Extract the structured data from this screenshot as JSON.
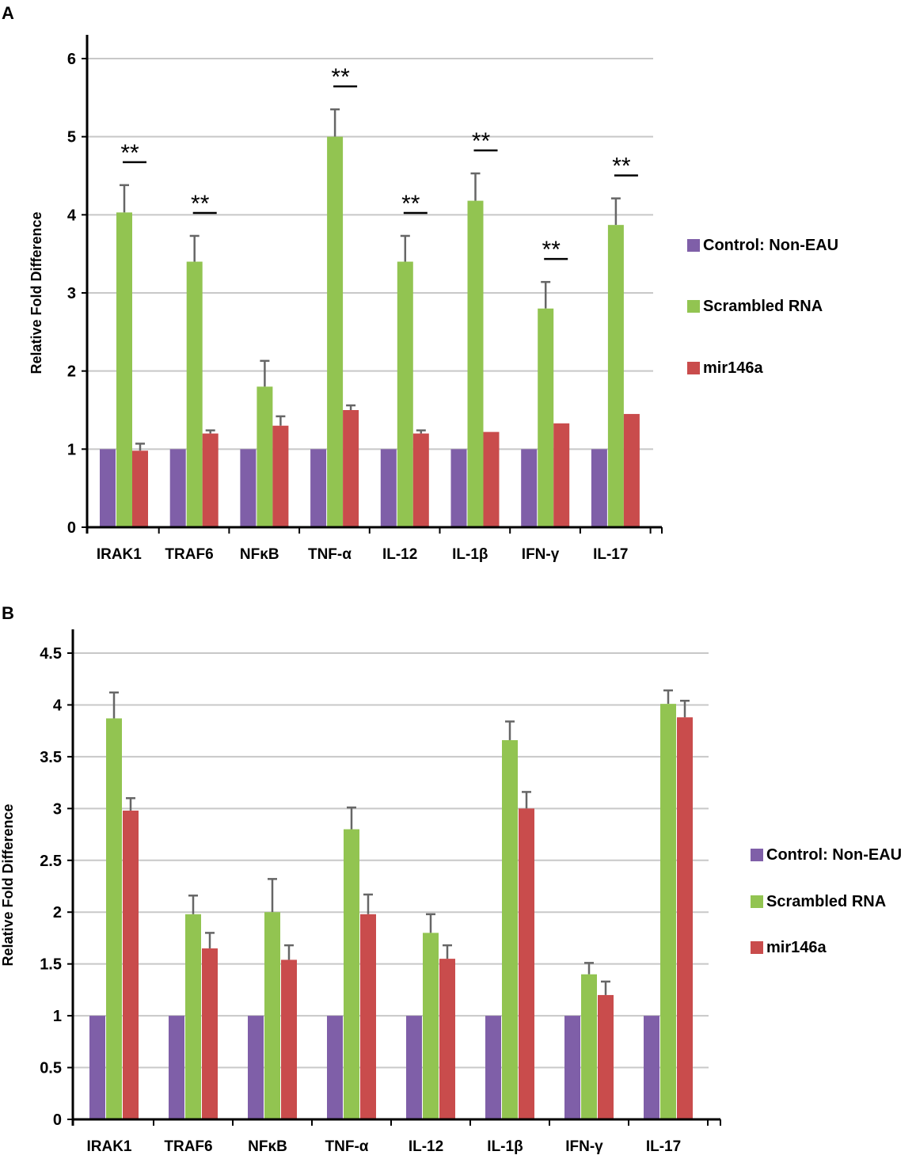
{
  "panel_labels": {
    "a": "A",
    "b": "B"
  },
  "colors": {
    "control": "#7f5fa8",
    "scrambled": "#92c451",
    "mir": "#c94c4c",
    "grid": "#c8c8c8",
    "error": "#666666"
  },
  "chart_data": [
    {
      "type": "bar",
      "panel": "A",
      "ylabel": "Relative Fold Difference",
      "ylim": [
        0,
        6
      ],
      "yticks": [
        "0",
        "1",
        "2",
        "3",
        "4",
        "5",
        "6"
      ],
      "categories": [
        "IRAK1",
        "TRAF6",
        "NFκB",
        "TNF-α",
        "IL-12",
        "IL-1β",
        "IFN-γ",
        "IL-17"
      ],
      "series": [
        {
          "name": "Control: Non-EAU",
          "values": [
            1,
            1,
            1,
            1,
            1,
            1,
            1,
            1
          ],
          "errors": [
            0,
            0,
            0,
            0,
            0,
            0,
            0,
            0
          ]
        },
        {
          "name": "Scrambled RNA",
          "values": [
            4.03,
            3.4,
            1.8,
            5.0,
            3.4,
            4.18,
            2.8,
            3.87
          ],
          "errors": [
            0.35,
            0.33,
            0.33,
            0.35,
            0.33,
            0.35,
            0.34,
            0.34
          ]
        },
        {
          "name": "mir146a",
          "values": [
            0.98,
            1.2,
            1.3,
            1.5,
            1.2,
            1.22,
            1.33,
            1.45
          ],
          "errors": [
            0.09,
            0.04,
            0.12,
            0.06,
            0.04,
            0,
            0,
            0
          ]
        }
      ],
      "significance": [
        "**",
        "**",
        "",
        "**",
        "**",
        "**",
        "**",
        "**"
      ]
    },
    {
      "type": "bar",
      "panel": "B",
      "ylabel": "Relative Fold Difference",
      "ylim": [
        0,
        4.5
      ],
      "yticks": [
        "0",
        "0.5",
        "1",
        "1.5",
        "2",
        "2.5",
        "3",
        "3.5",
        "4",
        "4.5"
      ],
      "categories": [
        "IRAK1",
        "TRAF6",
        "NFκB",
        "TNF-α",
        "IL-12",
        "IL-1β",
        "IFN-γ",
        "IL-17"
      ],
      "series": [
        {
          "name": "Control: Non-EAU",
          "values": [
            1,
            1,
            1,
            1,
            1,
            1,
            1,
            1
          ],
          "errors": [
            0,
            0,
            0,
            0,
            0,
            0,
            0,
            0
          ]
        },
        {
          "name": "Scrambled RNA",
          "values": [
            3.87,
            1.98,
            2.0,
            2.8,
            1.8,
            3.66,
            1.4,
            4.01
          ],
          "errors": [
            0.25,
            0.18,
            0.32,
            0.21,
            0.18,
            0.18,
            0.11,
            0.13
          ]
        },
        {
          "name": "mir146a",
          "values": [
            2.98,
            1.65,
            1.54,
            1.98,
            1.55,
            3.0,
            1.2,
            3.88
          ],
          "errors": [
            0.12,
            0.15,
            0.14,
            0.19,
            0.13,
            0.16,
            0.13,
            0.16
          ]
        }
      ]
    }
  ]
}
